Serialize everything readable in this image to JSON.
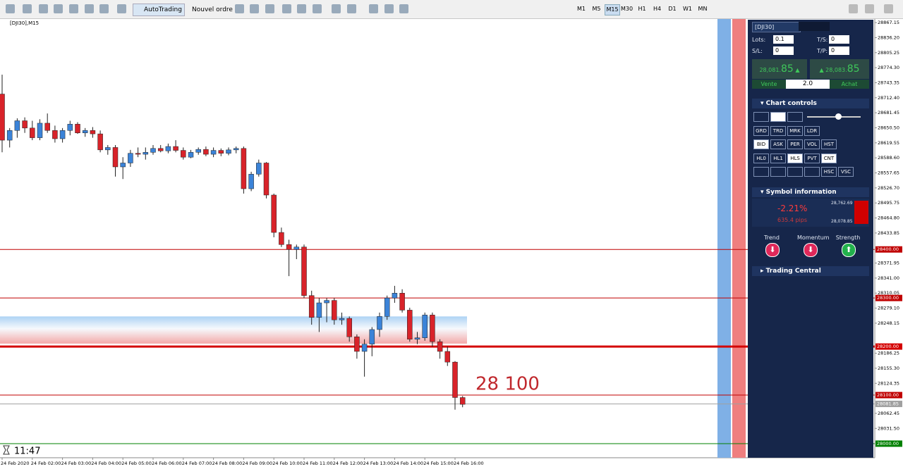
{
  "toolbar": {
    "buttons": [
      "AutoTrading",
      "Nouvel ordre"
    ],
    "timeframes": [
      "M1",
      "M5",
      "M15",
      "M30",
      "H1",
      "H4",
      "D1",
      "W1",
      "MN"
    ],
    "active_timeframe": "M15"
  },
  "chart_data": {
    "type": "candlestick",
    "title": "[DJI30],M15",
    "x_labels": [
      "24 Feb 2020",
      "24 Feb 02:00",
      "24 Feb 03:00",
      "24 Feb 04:00",
      "24 Feb 05:00",
      "24 Feb 06:00",
      "24 Feb 07:00",
      "24 Feb 08:00",
      "24 Feb 09:00",
      "24 Feb 10:00",
      "24 Feb 11:00",
      "24 Feb 12:00",
      "24 Feb 13:00",
      "24 Feb 14:00",
      "24 Feb 15:00",
      "24 Feb 16:00"
    ],
    "open": [
      28720,
      28625,
      28645,
      28665,
      28650,
      28630,
      28660,
      28645,
      28628,
      28645,
      28658,
      28640,
      28645,
      28638,
      28605,
      28610,
      28570,
      28578,
      28598,
      28596,
      28600,
      28608,
      28603,
      28612,
      28604,
      28590,
      28600,
      28606,
      28596,
      28604,
      28598,
      28605,
      28608,
      28525,
      28555,
      28578,
      28512,
      28435,
      28410,
      28400,
      28405,
      28305,
      28260,
      28290,
      28295,
      28255,
      28258,
      28220,
      28190,
      28205,
      28235,
      28262,
      28300,
      28310,
      28275,
      28215,
      28218,
      28265,
      28210,
      28190,
      28168,
      28095
    ],
    "high": [
      28760,
      28650,
      28670,
      28672,
      28665,
      28668,
      28680,
      28655,
      28650,
      28665,
      28662,
      28650,
      28652,
      28645,
      28615,
      28615,
      28590,
      28605,
      28610,
      28610,
      28615,
      28615,
      28618,
      28625,
      28610,
      28605,
      28610,
      28612,
      28610,
      28608,
      28610,
      28612,
      28612,
      28560,
      28585,
      28580,
      28515,
      28445,
      28420,
      28410,
      28410,
      28315,
      28300,
      28300,
      28300,
      28270,
      28262,
      28225,
      28215,
      28240,
      28270,
      28305,
      28325,
      28318,
      28280,
      28230,
      28270,
      28270,
      28215,
      28200,
      28170,
      28098
    ],
    "low": [
      28600,
      28610,
      28630,
      28640,
      28625,
      28625,
      28640,
      28620,
      28620,
      28635,
      28638,
      28632,
      28630,
      28600,
      28595,
      28550,
      28545,
      28570,
      28590,
      28585,
      28595,
      28600,
      28598,
      28600,
      28585,
      28588,
      28595,
      28592,
      28590,
      28592,
      28594,
      28598,
      28515,
      28520,
      28550,
      28505,
      28425,
      28405,
      28345,
      28380,
      28300,
      28245,
      28230,
      28250,
      28245,
      28245,
      28210,
      28175,
      28138,
      28180,
      28220,
      28255,
      28290,
      28270,
      28210,
      28205,
      28212,
      28200,
      28175,
      28160,
      28070,
      28075
    ],
    "close": [
      28625,
      28645,
      28665,
      28650,
      28630,
      28660,
      28645,
      28628,
      28645,
      28658,
      28640,
      28645,
      28638,
      28605,
      28610,
      28570,
      28578,
      28598,
      28596,
      28600,
      28608,
      28603,
      28612,
      28604,
      28590,
      28600,
      28606,
      28596,
      28604,
      28598,
      28605,
      28608,
      28525,
      28555,
      28578,
      28512,
      28435,
      28410,
      28400,
      28405,
      28305,
      28260,
      28290,
      28295,
      28255,
      28258,
      28220,
      28190,
      28205,
      28235,
      28262,
      28300,
      28310,
      28275,
      28215,
      28218,
      28265,
      28210,
      28190,
      28168,
      28095,
      28081
    ],
    "up_color": "#3b83d8",
    "down_color": "#d8232a",
    "ylim": [
      27971,
      28876
    ],
    "yticks": [
      28867.15,
      {
        "value": 28836.2,
        "label": "28836.20"
      },
      28805.25,
      {
        "value": 28774.3,
        "label": "28774.30"
      },
      28743.35,
      {
        "value": 28712.4,
        "label": "28712.40"
      },
      28681.45,
      {
        "value": 28650.5,
        "label": "28650.50"
      },
      28619.55,
      {
        "value": 28588.6,
        "label": "28588.60"
      },
      28557.65,
      {
        "value": 28526.7,
        "label": "28526.70"
      },
      28495.75,
      {
        "value": 28464.8,
        "label": "28464.80"
      },
      28433.85,
      28371.95,
      {
        "value": 28341,
        "label": "28341.00"
      },
      28310.05,
      {
        "value": 28279.1,
        "label": "28279.10"
      },
      28248.15,
      28186.25,
      {
        "value": 28155.3,
        "label": "28155.30"
      },
      28124.35,
      28062.45,
      {
        "value": 28031.5,
        "label": "28031.50"
      }
    ],
    "levels": [
      {
        "value": 28400,
        "label": "28400.00",
        "color": "#c00000",
        "width": 1
      },
      {
        "value": 28300,
        "label": "28300.00",
        "color": "#c00000",
        "width": 1
      },
      {
        "value": 28200,
        "label": "28200.00",
        "color": "#d40000",
        "width": 3
      },
      {
        "value": 28100,
        "label": "28100.00",
        "color": "#c00000",
        "width": 1
      },
      {
        "value": 28000,
        "label": "28000.00",
        "color": "#008000",
        "width": 1
      }
    ],
    "price_line": {
      "value": 28081.85,
      "label": "28081.85",
      "color": "#a0a0a0"
    },
    "zone": {
      "from": 28206,
      "to": 28262
    },
    "annotation": "28 100",
    "countdown": "11:47"
  },
  "panel": {
    "symbol": "[DJI30]",
    "lots_label": "Lots:",
    "lots": "0.1",
    "ts_label": "T/S:",
    "ts": "0",
    "sl_label": "S/L:",
    "sl": "0",
    "tp_label": "T/P:",
    "tp": "0",
    "sell_main": "28,081.",
    "sell_big": "85",
    "buy_main": "28,083.",
    "buy_big": "85",
    "sell_label": "Vente",
    "volume": "2.0",
    "buy_label": "Achat",
    "chart_controls_title": "Chart controls",
    "controls": [
      [
        "GRD",
        "TRD",
        "MRK",
        "LDR"
      ],
      [
        "BID",
        "ASK",
        "PER",
        "VOL",
        "HST"
      ],
      [
        "HL0",
        "HL1",
        "HLS",
        "PVT",
        "CNT"
      ],
      [
        "HSC",
        "VSC"
      ]
    ],
    "active_controls": [
      "BID",
      "HLS",
      "CNT"
    ],
    "symbol_info_title": "Symbol information",
    "change": "-2.21%",
    "pips": "635.4 pips",
    "high": "28,762.69",
    "low": "28,078.85",
    "indicators": [
      "Trend",
      "Momentum",
      "Strength"
    ],
    "trading_central": "Trading Central"
  }
}
